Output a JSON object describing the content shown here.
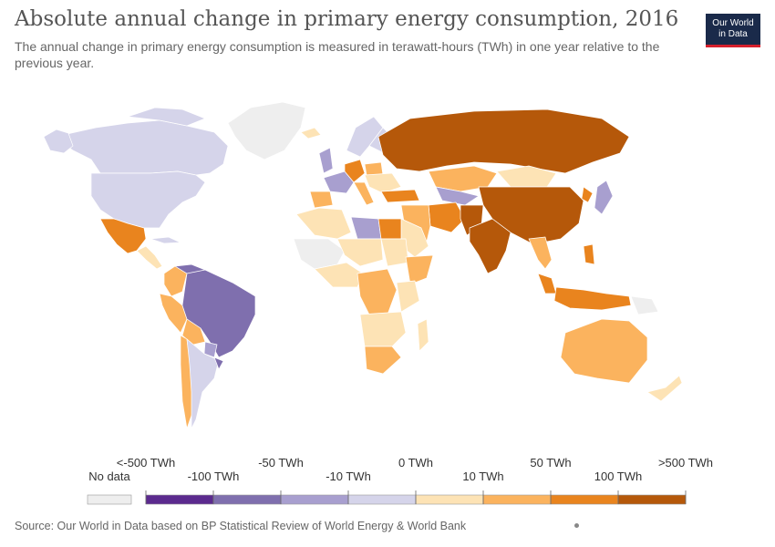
{
  "header": {
    "title": "Absolute annual change in primary energy consumption, 2016",
    "subtitle": "The annual change in primary energy consumption is measured in terawatt-hours (TWh) in one year relative to the previous year.",
    "logo_line1": "Our World",
    "logo_line2": "in Data"
  },
  "legend": {
    "no_data_label": "No data",
    "no_data_color": "#eeeeee",
    "bins": [
      {
        "color": "#5b2a8e"
      },
      {
        "color": "#7f6fae"
      },
      {
        "color": "#a89fcf"
      },
      {
        "color": "#d5d4ea"
      },
      {
        "color": "#fde3b5"
      },
      {
        "color": "#fbb35e"
      },
      {
        "color": "#e9841e"
      },
      {
        "color": "#b5580a"
      }
    ],
    "tick_labels": [
      "<-500 TWh",
      "-100 TWh",
      "-50 TWh",
      "-10 TWh",
      "0 TWh",
      "10 TWh",
      "50 TWh",
      "100 TWh",
      ">500 TWh"
    ]
  },
  "map_colors": {
    "very_high": "#b5580a",
    "high": "#e9841e",
    "medium": "#fbb35e",
    "low": "#fde3b5",
    "neg_small": "#d5d4ea",
    "neg_medium": "#a89fcf",
    "neg_large": "#7f6fae",
    "no_data": "#eeeeee"
  },
  "footer": {
    "source": "Source: Our World in Data based on BP Statistical Review of World Energy & World Bank"
  }
}
